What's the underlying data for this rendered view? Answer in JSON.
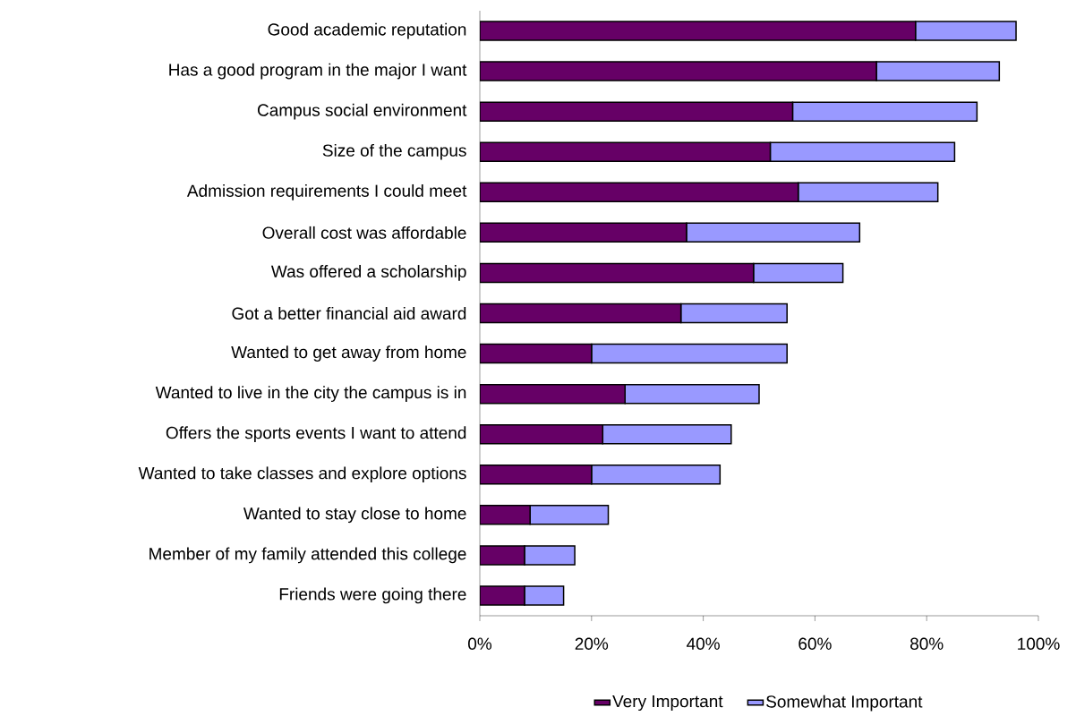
{
  "chart_data": {
    "type": "bar",
    "orientation": "horizontal",
    "stacked": true,
    "categories": [
      "Good academic reputation",
      "Has a good program in the major I want",
      "Campus social environment",
      "Size of the campus",
      "Admission requirements I could meet",
      "Overall cost was affordable",
      "Was offered a scholarship",
      "Got a better financial aid award",
      "Wanted to get away from home",
      "Wanted to live in the city the campus is in",
      "Offers the sports events I want to attend",
      "Wanted to take classes and explore options",
      "Wanted to stay close to home",
      "Member of my family attended this college",
      "Friends were going there"
    ],
    "series": [
      {
        "name": "Very Important",
        "color": "#660066",
        "values": [
          78,
          71,
          56,
          52,
          57,
          37,
          49,
          36,
          20,
          26,
          22,
          20,
          9,
          8,
          8
        ]
      },
      {
        "name": "Somewhat Important",
        "color": "#9999ff",
        "values": [
          18,
          22,
          33,
          33,
          25,
          31,
          16,
          19,
          35,
          24,
          23,
          23,
          14,
          9,
          7
        ]
      }
    ],
    "xlim": [
      0,
      100
    ],
    "xticks": [
      {
        "value": 0,
        "label": "0%"
      },
      {
        "value": 20,
        "label": "20%"
      },
      {
        "value": 40,
        "label": "40%"
      },
      {
        "value": 60,
        "label": "60%"
      },
      {
        "value": 80,
        "label": "80%"
      },
      {
        "value": 100,
        "label": "100%"
      }
    ],
    "grid": false,
    "legend": "bottom"
  }
}
